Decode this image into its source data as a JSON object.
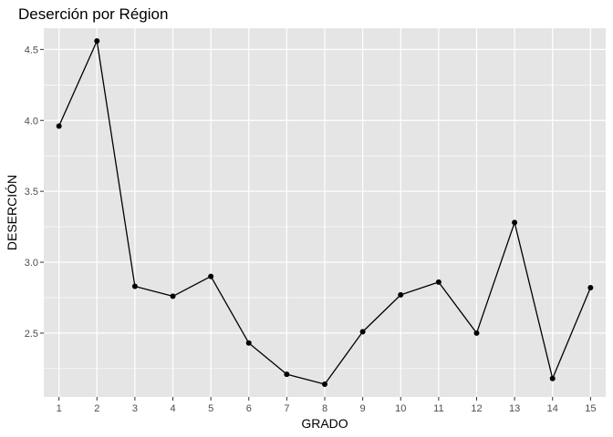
{
  "chart_data": {
    "type": "line",
    "title": "Deserción por Région",
    "xlabel": "GRADO",
    "ylabel": "DESERCIÓN",
    "x": [
      1,
      2,
      3,
      4,
      5,
      6,
      7,
      8,
      9,
      10,
      11,
      12,
      13,
      14,
      15
    ],
    "values": [
      3.96,
      4.56,
      2.83,
      2.76,
      2.9,
      2.43,
      2.21,
      2.14,
      2.51,
      2.77,
      2.86,
      2.5,
      3.28,
      2.18,
      2.82
    ],
    "xlim": [
      0.6,
      15.4
    ],
    "ylim": [
      2.05,
      4.65
    ],
    "xticks": [
      "1",
      "2",
      "3",
      "4",
      "5",
      "6",
      "7",
      "8",
      "9",
      "10",
      "11",
      "12",
      "13",
      "14",
      "15"
    ],
    "yticks": [
      "2.5",
      "3.0",
      "3.5",
      "4.0",
      "4.5"
    ],
    "grid": true,
    "colors": {
      "panel": "#e5e5e5",
      "grid": "#ffffff",
      "line": "#000000",
      "point": "#000000"
    }
  }
}
